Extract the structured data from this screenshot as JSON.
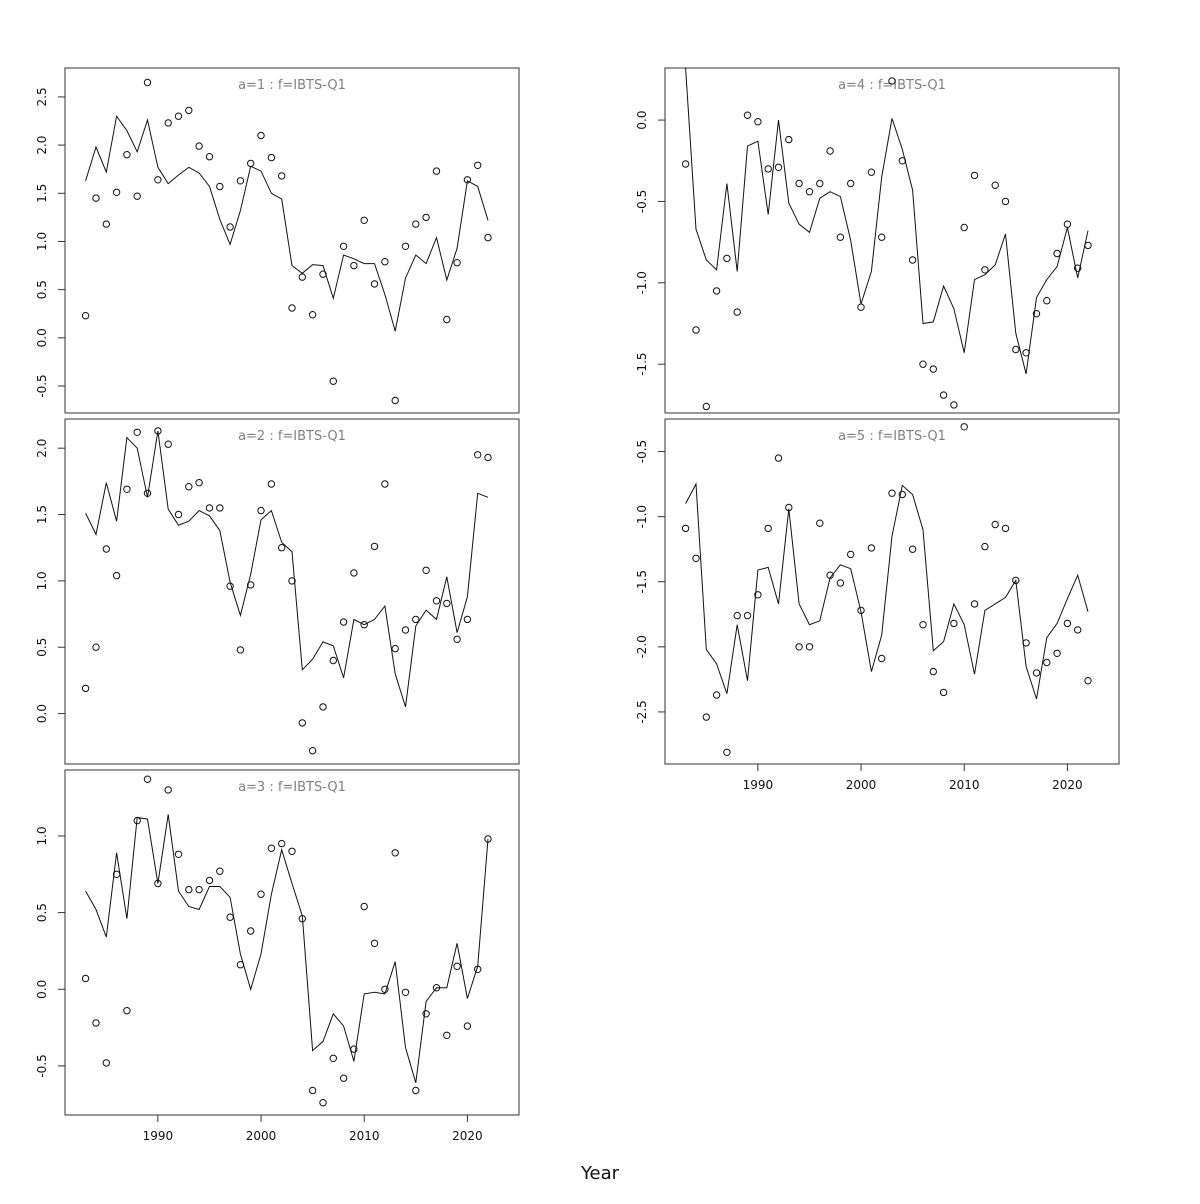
{
  "xlabel": "Year",
  "chart_data": [
    {
      "type": "scatter",
      "title": "a=1 : f=IBTS-Q1",
      "xlim": [
        1981,
        2025
      ],
      "ylim": [
        -0.78,
        2.8
      ],
      "yticks": [
        -0.5,
        0.0,
        0.5,
        1.0,
        1.5,
        2.0,
        2.5
      ],
      "ytick_labels": [
        "-0.5",
        "0.0",
        "0.5",
        "1.0",
        "1.5",
        "2.0",
        "2.5"
      ],
      "xticks": [],
      "xtick_labels": [],
      "series": [
        {
          "kind": "line",
          "x": [
            1983,
            1984,
            1985,
            1986,
            1987,
            1988,
            1989,
            1990,
            1991,
            1992,
            1993,
            1994,
            1995,
            1996,
            1997,
            1998,
            1999,
            2000,
            2001,
            2002,
            2003,
            2004,
            2005,
            2006,
            2007,
            2008,
            2009,
            2010,
            2011,
            2012,
            2013,
            2014,
            2015,
            2016,
            2017,
            2018,
            2019,
            2020,
            2021,
            2022
          ],
          "y": [
            1.63,
            1.98,
            1.72,
            2.3,
            2.15,
            1.93,
            2.26,
            1.77,
            1.6,
            1.69,
            1.77,
            1.71,
            1.57,
            1.23,
            0.97,
            1.32,
            1.78,
            1.73,
            1.5,
            1.44,
            0.75,
            0.67,
            0.76,
            0.75,
            0.41,
            0.86,
            0.82,
            0.77,
            0.77,
            0.45,
            0.07,
            0.62,
            0.86,
            0.77,
            1.04,
            0.6,
            0.93,
            1.63,
            1.57,
            1.22
          ]
        },
        {
          "kind": "points",
          "x": [
            1983,
            1984,
            1985,
            1986,
            1987,
            1988,
            1989,
            1990,
            1991,
            1992,
            1993,
            1994,
            1995,
            1996,
            1997,
            1998,
            1999,
            2000,
            2001,
            2002,
            2003,
            2004,
            2005,
            2006,
            2007,
            2008,
            2009,
            2010,
            2011,
            2012,
            2013,
            2014,
            2015,
            2016,
            2017,
            2018,
            2019,
            2020,
            2021,
            2022
          ],
          "y": [
            0.23,
            1.45,
            1.18,
            1.51,
            1.9,
            1.47,
            2.65,
            1.64,
            2.23,
            2.3,
            2.36,
            1.99,
            1.88,
            1.57,
            1.15,
            1.63,
            1.81,
            2.1,
            1.87,
            1.68,
            0.31,
            0.63,
            0.24,
            0.66,
            -0.45,
            0.95,
            0.75,
            1.22,
            0.56,
            0.79,
            -0.65,
            0.95,
            1.18,
            1.25,
            1.73,
            0.19,
            0.78,
            1.64,
            1.79,
            1.04
          ]
        }
      ]
    },
    {
      "type": "scatter",
      "title": "a=4 : f=IBTS-Q1",
      "xlim": [
        1981,
        2025
      ],
      "ylim": [
        -1.8,
        0.32
      ],
      "yticks": [
        -1.5,
        -1.0,
        -0.5,
        0.0
      ],
      "ytick_labels": [
        "-1.5",
        "-1.0",
        "-0.5",
        "0.0"
      ],
      "xticks": [],
      "xtick_labels": [],
      "series": [
        {
          "kind": "line",
          "x": [
            1983,
            1984,
            1985,
            1986,
            1987,
            1988,
            1989,
            1990,
            1991,
            1992,
            1993,
            1994,
            1995,
            1996,
            1997,
            1998,
            1999,
            2000,
            2001,
            2002,
            2003,
            2004,
            2005,
            2006,
            2007,
            2008,
            2009,
            2010,
            2011,
            2012,
            2013,
            2014,
            2015,
            2016,
            2017,
            2018,
            2019,
            2020,
            2021,
            2022
          ],
          "y": [
            0.32,
            -0.67,
            -0.86,
            -0.92,
            -0.39,
            -0.93,
            -0.16,
            -0.13,
            -0.58,
            0.0,
            -0.51,
            -0.64,
            -0.69,
            -0.48,
            -0.44,
            -0.47,
            -0.74,
            -1.13,
            -0.93,
            -0.35,
            0.01,
            -0.18,
            -0.43,
            -1.25,
            -1.24,
            -1.02,
            -1.16,
            -1.43,
            -0.98,
            -0.95,
            -0.89,
            -0.7,
            -1.31,
            -1.56,
            -1.09,
            -0.98,
            -0.9,
            -0.66,
            -0.97,
            -0.68
          ]
        },
        {
          "kind": "points",
          "x": [
            1983,
            1984,
            1985,
            1986,
            1987,
            1988,
            1989,
            1990,
            1991,
            1992,
            1993,
            1994,
            1995,
            1996,
            1997,
            1998,
            1999,
            2000,
            2001,
            2002,
            2003,
            2004,
            2005,
            2006,
            2007,
            2008,
            2009,
            2010,
            2011,
            2012,
            2013,
            2014,
            2015,
            2016,
            2017,
            2018,
            2019,
            2020,
            2021,
            2022
          ],
          "y": [
            -0.27,
            -1.29,
            -1.76,
            -1.05,
            -0.85,
            -1.18,
            0.03,
            -0.01,
            -0.3,
            -0.29,
            -0.12,
            -0.39,
            -0.44,
            -0.39,
            -0.19,
            -0.72,
            -0.39,
            -1.15,
            -0.32,
            -0.72,
            0.24,
            -0.25,
            -0.86,
            -1.5,
            -1.53,
            -1.69,
            -1.75,
            -0.66,
            -0.34,
            -0.92,
            -0.4,
            -0.5,
            -1.41,
            -1.43,
            -1.19,
            -1.11,
            -0.82,
            -0.64,
            -0.91,
            -0.77
          ]
        }
      ]
    },
    {
      "type": "scatter",
      "title": "a=2 : f=IBTS-Q1",
      "xlim": [
        1981,
        2025
      ],
      "ylim": [
        -0.38,
        2.22
      ],
      "yticks": [
        0.0,
        0.5,
        1.0,
        1.5,
        2.0
      ],
      "ytick_labels": [
        "0.0",
        "0.5",
        "1.0",
        "1.5",
        "2.0"
      ],
      "xticks": [],
      "xtick_labels": [],
      "series": [
        {
          "kind": "line",
          "x": [
            1983,
            1984,
            1985,
            1986,
            1987,
            1988,
            1989,
            1990,
            1991,
            1992,
            1993,
            1994,
            1995,
            1996,
            1997,
            1998,
            1999,
            2000,
            2001,
            2002,
            2003,
            2004,
            2005,
            2006,
            2007,
            2008,
            2009,
            2010,
            2011,
            2012,
            2013,
            2014,
            2015,
            2016,
            2017,
            2018,
            2019,
            2020,
            2021,
            2022
          ],
          "y": [
            1.51,
            1.35,
            1.74,
            1.45,
            2.08,
            2.0,
            1.63,
            2.13,
            1.54,
            1.42,
            1.45,
            1.53,
            1.49,
            1.38,
            0.99,
            0.74,
            1.05,
            1.46,
            1.53,
            1.29,
            1.22,
            0.33,
            0.41,
            0.54,
            0.51,
            0.27,
            0.71,
            0.67,
            0.71,
            0.81,
            0.3,
            0.05,
            0.66,
            0.78,
            0.71,
            1.03,
            0.61,
            0.88,
            1.66,
            1.63
          ]
        },
        {
          "kind": "points",
          "x": [
            1983,
            1984,
            1985,
            1986,
            1987,
            1988,
            1989,
            1990,
            1991,
            1992,
            1993,
            1994,
            1995,
            1996,
            1997,
            1998,
            1999,
            2000,
            2001,
            2002,
            2003,
            2004,
            2005,
            2006,
            2007,
            2008,
            2009,
            2010,
            2011,
            2012,
            2013,
            2014,
            2015,
            2016,
            2017,
            2018,
            2019,
            2020,
            2021,
            2022
          ],
          "y": [
            0.19,
            0.5,
            1.24,
            1.04,
            1.69,
            2.12,
            1.66,
            2.13,
            2.03,
            1.5,
            1.71,
            1.74,
            1.55,
            1.55,
            0.96,
            0.48,
            0.97,
            1.53,
            1.73,
            1.25,
            1.0,
            -0.07,
            -0.28,
            0.05,
            0.4,
            0.69,
            1.06,
            0.67,
            1.26,
            1.73,
            0.49,
            0.63,
            0.71,
            1.08,
            0.85,
            0.83,
            0.56,
            0.71,
            1.95,
            1.93
          ]
        }
      ]
    },
    {
      "type": "scatter",
      "title": "a=5 : f=IBTS-Q1",
      "xlim": [
        1981,
        2025
      ],
      "ylim": [
        -2.9,
        -0.25
      ],
      "yticks": [
        -2.5,
        -2.0,
        -1.5,
        -1.0,
        -0.5
      ],
      "ytick_labels": [
        "-2.5",
        "-2.0",
        "-1.5",
        "-1.0",
        "-0.5"
      ],
      "xticks": [
        1990,
        2000,
        2010,
        2020
      ],
      "xtick_labels": [
        "1990",
        "2000",
        "2010",
        "2020"
      ],
      "series": [
        {
          "kind": "line",
          "x": [
            1983,
            1984,
            1985,
            1986,
            1987,
            1988,
            1989,
            1990,
            1991,
            1992,
            1993,
            1994,
            1995,
            1996,
            1997,
            1998,
            1999,
            2000,
            2001,
            2002,
            2003,
            2004,
            2005,
            2006,
            2007,
            2008,
            2009,
            2010,
            2011,
            2012,
            2013,
            2014,
            2015,
            2016,
            2017,
            2018,
            2019,
            2020,
            2021,
            2022
          ],
          "y": [
            -0.9,
            -0.75,
            -2.02,
            -2.13,
            -2.36,
            -1.83,
            -2.26,
            -1.41,
            -1.39,
            -1.67,
            -0.94,
            -1.67,
            -1.83,
            -1.8,
            -1.47,
            -1.37,
            -1.4,
            -1.73,
            -2.19,
            -1.91,
            -1.15,
            -0.76,
            -0.83,
            -1.1,
            -2.03,
            -1.96,
            -1.67,
            -1.83,
            -2.21,
            -1.72,
            -1.67,
            -1.62,
            -1.49,
            -2.15,
            -2.4,
            -1.93,
            -1.82,
            -1.63,
            -1.45,
            -1.73
          ]
        },
        {
          "kind": "points",
          "x": [
            1983,
            1984,
            1985,
            1986,
            1987,
            1988,
            1989,
            1990,
            1991,
            1992,
            1993,
            1994,
            1995,
            1996,
            1997,
            1998,
            1999,
            2000,
            2001,
            2002,
            2003,
            2004,
            2005,
            2006,
            2007,
            2008,
            2009,
            2010,
            2011,
            2012,
            2013,
            2014,
            2015,
            2016,
            2017,
            2018,
            2019,
            2020,
            2021,
            2022
          ],
          "y": [
            -1.09,
            -1.32,
            -2.54,
            -2.37,
            -2.81,
            -1.76,
            -1.76,
            -1.6,
            -1.09,
            -0.55,
            -0.93,
            -2.0,
            -2.0,
            -1.05,
            -1.45,
            -1.51,
            -1.29,
            -1.72,
            -1.24,
            -2.09,
            -0.82,
            -0.83,
            -1.25,
            -1.83,
            -2.19,
            -2.35,
            -1.82,
            -0.31,
            -1.67,
            -1.23,
            -1.06,
            -1.09,
            -1.49,
            -1.97,
            -2.2,
            -2.12,
            -2.05,
            -1.82,
            -1.87,
            -2.26
          ]
        }
      ]
    },
    {
      "type": "scatter",
      "title": "a=3 : f=IBTS-Q1",
      "xlim": [
        1981,
        2025
      ],
      "ylim": [
        -0.82,
        1.43
      ],
      "yticks": [
        -0.5,
        0.0,
        0.5,
        1.0
      ],
      "ytick_labels": [
        "-0.5",
        "0.0",
        "0.5",
        "1.0"
      ],
      "xticks": [
        1990,
        2000,
        2010,
        2020
      ],
      "xtick_labels": [
        "1990",
        "2000",
        "2010",
        "2020"
      ],
      "series": [
        {
          "kind": "line",
          "x": [
            1983,
            1984,
            1985,
            1986,
            1987,
            1988,
            1989,
            1990,
            1991,
            1992,
            1993,
            1994,
            1995,
            1996,
            1997,
            1998,
            1999,
            2000,
            2001,
            2002,
            2003,
            2004,
            2005,
            2006,
            2007,
            2008,
            2009,
            2010,
            2011,
            2012,
            2013,
            2014,
            2015,
            2016,
            2017,
            2018,
            2019,
            2020,
            2021,
            2022
          ],
          "y": [
            0.64,
            0.52,
            0.34,
            0.89,
            0.46,
            1.12,
            1.11,
            0.69,
            1.14,
            0.64,
            0.54,
            0.52,
            0.67,
            0.67,
            0.6,
            0.23,
            0.0,
            0.23,
            0.62,
            0.91,
            0.69,
            0.48,
            -0.4,
            -0.34,
            -0.16,
            -0.24,
            -0.47,
            -0.03,
            -0.02,
            -0.03,
            0.18,
            -0.38,
            -0.61,
            -0.08,
            0.01,
            0.01,
            0.3,
            -0.06,
            0.15,
            0.98
          ]
        },
        {
          "kind": "points",
          "x": [
            1983,
            1984,
            1985,
            1986,
            1987,
            1988,
            1989,
            1990,
            1991,
            1992,
            1993,
            1994,
            1995,
            1996,
            1997,
            1998,
            1999,
            2000,
            2001,
            2002,
            2003,
            2004,
            2005,
            2006,
            2007,
            2008,
            2009,
            2010,
            2011,
            2012,
            2013,
            2014,
            2015,
            2016,
            2017,
            2018,
            2019,
            2020,
            2021,
            2022
          ],
          "y": [
            0.07,
            -0.22,
            -0.48,
            0.75,
            -0.14,
            1.1,
            1.37,
            0.69,
            1.3,
            0.88,
            0.65,
            0.65,
            0.71,
            0.77,
            0.47,
            0.16,
            0.38,
            0.62,
            0.92,
            0.95,
            0.9,
            0.46,
            -0.66,
            -0.74,
            -0.45,
            -0.58,
            -0.39,
            0.54,
            0.3,
            0.0,
            0.89,
            -0.02,
            -0.66,
            -0.16,
            0.01,
            -0.3,
            0.15,
            -0.24,
            0.13,
            0.98
          ]
        }
      ]
    }
  ]
}
